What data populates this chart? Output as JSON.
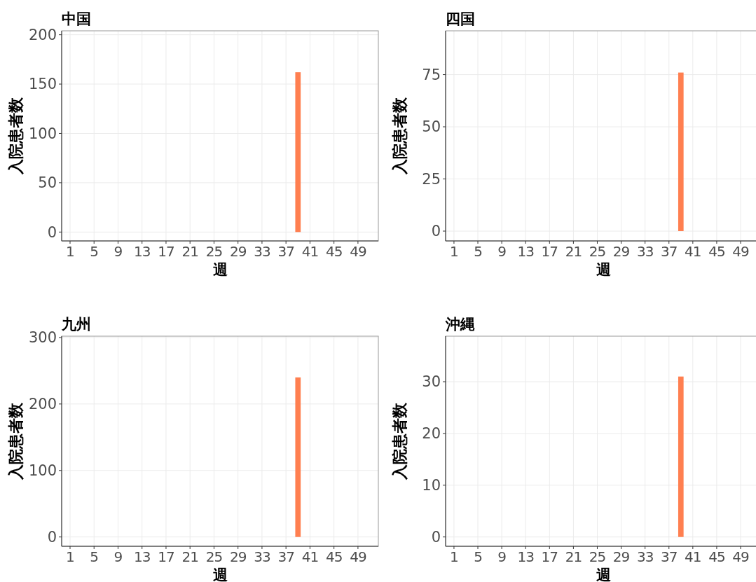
{
  "chart_data": [
    {
      "type": "bar",
      "title": "中国",
      "xlabel": "週",
      "ylabel": "入院患者数",
      "categories": [
        "1",
        null,
        null,
        null,
        "5",
        null,
        null,
        null,
        "9",
        null,
        null,
        null,
        "13",
        null,
        null,
        null,
        "17",
        null,
        null,
        null,
        "21",
        null,
        null,
        null,
        "25",
        null,
        null,
        null,
        "29",
        null,
        null,
        null,
        "33",
        null,
        null,
        null,
        "37",
        null,
        null,
        null,
        "41",
        null,
        null,
        null,
        "45",
        null,
        null,
        null,
        "49",
        null,
        null,
        null
      ],
      "values": [
        null,
        null,
        null,
        null,
        null,
        null,
        null,
        null,
        null,
        null,
        null,
        null,
        null,
        null,
        null,
        null,
        null,
        null,
        null,
        null,
        null,
        null,
        null,
        null,
        null,
        null,
        null,
        null,
        null,
        null,
        null,
        null,
        null,
        null,
        null,
        null,
        null,
        null,
        162,
        null,
        null,
        null,
        null,
        null,
        null,
        null,
        null,
        null,
        null,
        null,
        null,
        null
      ],
      "color": "#ff7f50",
      "ylim": [
        -9,
        204
      ],
      "yticks": [
        0,
        50,
        100,
        150,
        200
      ],
      "grid": true
    },
    {
      "type": "bar",
      "title": "四国",
      "xlabel": "週",
      "ylabel": "入院患者数",
      "categories": [
        "1",
        null,
        null,
        null,
        "5",
        null,
        null,
        null,
        "9",
        null,
        null,
        null,
        "13",
        null,
        null,
        null,
        "17",
        null,
        null,
        null,
        "21",
        null,
        null,
        null,
        "25",
        null,
        null,
        null,
        "29",
        null,
        null,
        null,
        "33",
        null,
        null,
        null,
        "37",
        null,
        null,
        null,
        "41",
        null,
        null,
        null,
        "45",
        null,
        null,
        null,
        "49",
        null,
        null,
        null
      ],
      "values": [
        null,
        null,
        null,
        null,
        null,
        null,
        null,
        null,
        null,
        null,
        null,
        null,
        null,
        null,
        null,
        null,
        null,
        null,
        null,
        null,
        null,
        null,
        null,
        null,
        null,
        null,
        null,
        null,
        null,
        null,
        null,
        null,
        null,
        null,
        null,
        null,
        null,
        null,
        76,
        null,
        null,
        null,
        null,
        null,
        null,
        null,
        null,
        null,
        null,
        null,
        null,
        null
      ],
      "color": "#ff7f50",
      "ylim": [
        -4.7,
        96
      ],
      "yticks": [
        0,
        25,
        50,
        75
      ],
      "grid": true
    },
    {
      "type": "bar",
      "title": "九州",
      "xlabel": "週",
      "ylabel": "入院患者数",
      "categories": [
        "1",
        null,
        null,
        null,
        "5",
        null,
        null,
        null,
        "9",
        null,
        null,
        null,
        "13",
        null,
        null,
        null,
        "17",
        null,
        null,
        null,
        "21",
        null,
        null,
        null,
        "25",
        null,
        null,
        null,
        "29",
        null,
        null,
        null,
        "33",
        null,
        null,
        null,
        "37",
        null,
        null,
        null,
        "41",
        null,
        null,
        null,
        "45",
        null,
        null,
        null,
        "49",
        null,
        null,
        null
      ],
      "values": [
        null,
        null,
        null,
        null,
        null,
        null,
        null,
        null,
        null,
        null,
        null,
        null,
        null,
        null,
        null,
        null,
        null,
        null,
        null,
        null,
        null,
        null,
        null,
        null,
        null,
        null,
        null,
        null,
        null,
        null,
        null,
        null,
        null,
        null,
        null,
        null,
        null,
        null,
        240,
        null,
        null,
        null,
        null,
        null,
        null,
        null,
        null,
        null,
        null,
        null,
        null,
        null
      ],
      "color": "#ff7f50",
      "ylim": [
        -14,
        302
      ],
      "yticks": [
        0,
        100,
        200,
        300
      ],
      "grid": true
    },
    {
      "type": "bar",
      "title": "沖縄",
      "xlabel": "週",
      "ylabel": "入院患者数",
      "categories": [
        "1",
        null,
        null,
        null,
        "5",
        null,
        null,
        null,
        "9",
        null,
        null,
        null,
        "13",
        null,
        null,
        null,
        "17",
        null,
        null,
        null,
        "21",
        null,
        null,
        null,
        "25",
        null,
        null,
        null,
        "29",
        null,
        null,
        null,
        "33",
        null,
        null,
        null,
        "37",
        null,
        null,
        null,
        "41",
        null,
        null,
        null,
        "45",
        null,
        null,
        null,
        "49",
        null,
        null,
        null
      ],
      "values": [
        null,
        null,
        null,
        null,
        null,
        null,
        null,
        null,
        null,
        null,
        null,
        null,
        null,
        null,
        null,
        null,
        null,
        null,
        null,
        null,
        null,
        null,
        null,
        null,
        null,
        null,
        null,
        null,
        null,
        null,
        null,
        null,
        null,
        null,
        null,
        null,
        null,
        null,
        31,
        null,
        null,
        null,
        null,
        null,
        null,
        null,
        null,
        null,
        null,
        null,
        null,
        null
      ],
      "color": "#ff7f50",
      "ylim": [
        -1.8,
        38.8
      ],
      "yticks": [
        0,
        10,
        20,
        30
      ],
      "grid": true
    }
  ]
}
